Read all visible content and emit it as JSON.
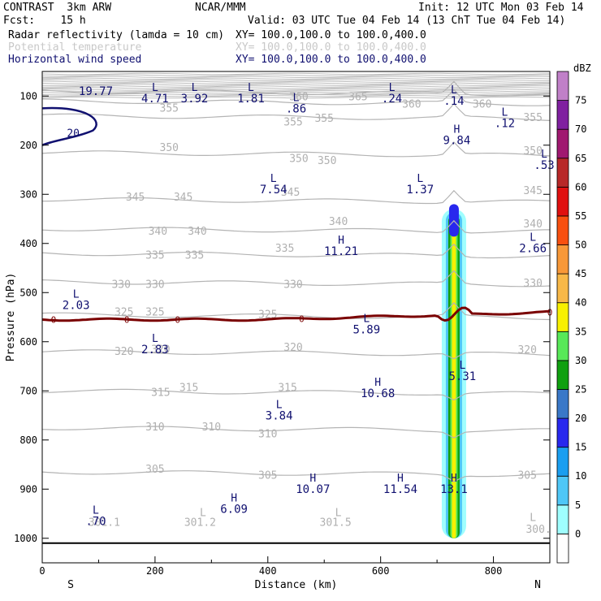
{
  "header": {
    "line1_left": "CONTRAST  3km ARW",
    "line1_center": "NCAR/MMM",
    "line1_right": "Init: 12 UTC Mon 03 Feb 14",
    "line2_left": "Fcst:    15 h",
    "line2_right": "Valid: 03 UTC Tue 04 Feb 14 (13 ChT Tue 04 Feb 14)",
    "fields": [
      {
        "label": "Radar reflectivity (lamda = 10 cm)",
        "xy": "XY= 100.0,100.0 to 100.0,400.0",
        "color": "#000000"
      },
      {
        "label": "Potential temperature",
        "xy": "XY= 100.0,100.0 to 100.0,400.0",
        "color": "#c8c8c8"
      },
      {
        "label": "Horizontal wind speed",
        "xy": "XY= 100.0,100.0 to 100.0,400.0",
        "color": "#101070"
      }
    ]
  },
  "chart_data": {
    "type": "contour_cross_section",
    "xlabel": "Distance (km)",
    "ylabel": "Pressure (hPa)",
    "xlim": [
      0,
      900
    ],
    "ylim": [
      1050,
      50
    ],
    "x_ticks": [
      0,
      200,
      400,
      600,
      800
    ],
    "y_ticks": [
      100,
      200,
      300,
      400,
      500,
      600,
      700,
      800,
      900,
      1000
    ],
    "x_end_labels": [
      "S",
      "N"
    ],
    "colorbar": {
      "unit": "dBZ",
      "levels": [
        0,
        5,
        10,
        15,
        20,
        25,
        30,
        35,
        40,
        45,
        50,
        55,
        60,
        65,
        70,
        75
      ],
      "colors": [
        "#ffffff",
        "#9ffefe",
        "#4fc7f7",
        "#1a9ef0",
        "#2828ee",
        "#3a78c8",
        "#10a010",
        "#58e858",
        "#f8f000",
        "#f8b848",
        "#f89838",
        "#f85010",
        "#e01010",
        "#b82828",
        "#a01870",
        "#8020a0",
        "#c080c8"
      ]
    },
    "theta_contours": [
      {
        "label": "305",
        "p": 865
      },
      {
        "label": "310",
        "p": 775
      },
      {
        "label": "315",
        "p": 700
      },
      {
        "label": "320",
        "p": 620
      },
      {
        "label": "325",
        "p": 545
      },
      {
        "label": "330",
        "p": 478
      },
      {
        "label": "335",
        "p": 420
      },
      {
        "label": "340",
        "p": 370
      },
      {
        "label": "345",
        "p": 310
      },
      {
        "label": "350",
        "p": 215
      },
      {
        "label": "355",
        "p": 140
      },
      {
        "label": "360",
        "p": 110
      },
      {
        "label": "365",
        "p": 90
      }
    ],
    "theta_labels": [
      {
        "text": "355",
        "x": 225,
        "p": 125
      },
      {
        "text": "360",
        "x": 455,
        "p": 102
      },
      {
        "text": "365",
        "x": 560,
        "p": 102
      },
      {
        "text": "360",
        "x": 655,
        "p": 117
      },
      {
        "text": "360",
        "x": 780,
        "p": 117
      },
      {
        "text": "355",
        "x": 445,
        "p": 153
      },
      {
        "text": "355",
        "x": 500,
        "p": 146
      },
      {
        "text": "355",
        "x": 870,
        "p": 144
      },
      {
        "text": "350",
        "x": 225,
        "p": 205
      },
      {
        "text": "350",
        "x": 455,
        "p": 228
      },
      {
        "text": "350",
        "x": 505,
        "p": 232
      },
      {
        "text": "350",
        "x": 870,
        "p": 212
      },
      {
        "text": "345",
        "x": 165,
        "p": 306
      },
      {
        "text": "345",
        "x": 250,
        "p": 306
      },
      {
        "text": "345",
        "x": 440,
        "p": 296
      },
      {
        "text": "345",
        "x": 870,
        "p": 293
      },
      {
        "text": "340",
        "x": 205,
        "p": 376
      },
      {
        "text": "340",
        "x": 275,
        "p": 376
      },
      {
        "text": "340",
        "x": 525,
        "p": 356
      },
      {
        "text": "340",
        "x": 870,
        "p": 361
      },
      {
        "text": "335",
        "x": 200,
        "p": 424
      },
      {
        "text": "335",
        "x": 270,
        "p": 424
      },
      {
        "text": "335",
        "x": 430,
        "p": 410
      },
      {
        "text": "330",
        "x": 140,
        "p": 484
      },
      {
        "text": "330",
        "x": 200,
        "p": 484
      },
      {
        "text": "330",
        "x": 445,
        "p": 484
      },
      {
        "text": "330",
        "x": 870,
        "p": 481
      },
      {
        "text": "325",
        "x": 145,
        "p": 540
      },
      {
        "text": "325",
        "x": 200,
        "p": 540
      },
      {
        "text": "325",
        "x": 400,
        "p": 545
      },
      {
        "text": "320",
        "x": 145,
        "p": 620
      },
      {
        "text": "320",
        "x": 210,
        "p": 616
      },
      {
        "text": "320",
        "x": 445,
        "p": 612
      },
      {
        "text": "320",
        "x": 860,
        "p": 617
      },
      {
        "text": "315",
        "x": 210,
        "p": 704
      },
      {
        "text": "315",
        "x": 260,
        "p": 694
      },
      {
        "text": "315",
        "x": 435,
        "p": 694
      },
      {
        "text": "310",
        "x": 200,
        "p": 774
      },
      {
        "text": "310",
        "x": 300,
        "p": 774
      },
      {
        "text": "310",
        "x": 400,
        "p": 788
      },
      {
        "text": "305",
        "x": 200,
        "p": 860
      },
      {
        "text": "305",
        "x": 400,
        "p": 872
      },
      {
        "text": "305",
        "x": 860,
        "p": 872
      },
      {
        "text": "301.1",
        "x": 110,
        "p": 968
      },
      {
        "text": "301.2",
        "x": 280,
        "p": 968
      },
      {
        "text": "301.5",
        "x": 520,
        "p": 968
      },
      {
        "text": "300.",
        "x": 880,
        "p": 982
      }
    ],
    "wind_speed_markers": [
      {
        "type": "",
        "value": "19.77",
        "x": 95,
        "p": 75
      },
      {
        "type": "L",
        "value": "4.71",
        "x": 200,
        "p": 90
      },
      {
        "type": "L",
        "value": "3.92",
        "x": 270,
        "p": 90
      },
      {
        "type": "L",
        "value": "1.81",
        "x": 370,
        "p": 90
      },
      {
        "type": "L",
        "value": ".86",
        "x": 450,
        "p": 110
      },
      {
        "type": "L",
        "value": ".24",
        "x": 620,
        "p": 90
      },
      {
        "type": "L",
        "value": ".14",
        "x": 730,
        "p": 95
      },
      {
        "type": "L",
        "value": ".12",
        "x": 820,
        "p": 140
      },
      {
        "type": "H",
        "value": "9.84",
        "x": 735,
        "p": 175
      },
      {
        "type": "L",
        "value": ".53",
        "x": 890,
        "p": 225
      },
      {
        "type": "L",
        "value": "7.54",
        "x": 410,
        "p": 275
      },
      {
        "type": "L",
        "value": "1.37",
        "x": 670,
        "p": 275
      },
      {
        "type": "L",
        "value": "2.66",
        "x": 870,
        "p": 395
      },
      {
        "type": "H",
        "value": "11.21",
        "x": 530,
        "p": 400
      },
      {
        "type": "L",
        "value": "2.03",
        "x": 60,
        "p": 510
      },
      {
        "type": "L",
        "value": "5.89",
        "x": 575,
        "p": 560
      },
      {
        "type": "L",
        "value": "2.83",
        "x": 200,
        "p": 600
      },
      {
        "type": "L",
        "value": "5.31",
        "x": 745,
        "p": 655
      },
      {
        "type": "H",
        "value": "10.68",
        "x": 595,
        "p": 690
      },
      {
        "type": "L",
        "value": "3.84",
        "x": 420,
        "p": 735
      },
      {
        "type": "H",
        "value": "10.07",
        "x": 480,
        "p": 885
      },
      {
        "type": "H",
        "value": "11.54",
        "x": 635,
        "p": 885
      },
      {
        "type": "H",
        "value": "13.1",
        "x": 730,
        "p": 885
      },
      {
        "type": "H",
        "value": "6.09",
        "x": 340,
        "p": 925
      },
      {
        "type": "L",
        "value": ".70",
        "x": 95,
        "p": 950
      },
      {
        "type": "L",
        "value": "",
        "x": 285,
        "p": 955
      },
      {
        "type": "L",
        "value": "",
        "x": 525,
        "p": 955
      },
      {
        "type": "L",
        "value": "",
        "x": 870,
        "p": 965
      }
    ],
    "wind_contours": [
      {
        "label": "20",
        "p": 175
      },
      {
        "label": "0",
        "p": 555
      }
    ],
    "reflectivity_column": {
      "x_center": 730,
      "p_top": 330,
      "p_bottom": 1000,
      "max_dbz": 32
    }
  }
}
